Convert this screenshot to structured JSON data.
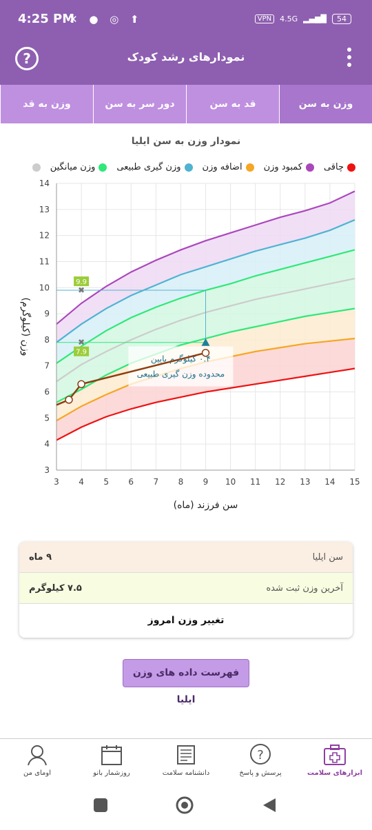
{
  "status": {
    "time": "4:25 PM",
    "network": "4.5G",
    "vpn": "VPN",
    "battery": "54"
  },
  "appbar": {
    "title": "نمودارهای رشد کودک",
    "help_symbol": "?"
  },
  "tabs": [
    {
      "label": "وزن به سن",
      "active": true
    },
    {
      "label": "قد به سن",
      "active": false
    },
    {
      "label": "دور سر به سن",
      "active": false
    },
    {
      "label": "وزن به قد",
      "active": false
    }
  ],
  "legend": [
    {
      "label": "چاقی",
      "color": "#ab47bc"
    },
    {
      "label": "کمبود وزن",
      "color": "#f5a623"
    },
    {
      "label": "اضافه وزن",
      "color": "#4fb3d1"
    },
    {
      "label": "وزن گیری طبیعی",
      "color": "#2ee87a"
    },
    {
      "label": "وزن میانگین",
      "color": "#cccccc"
    },
    {
      "label": "",
      "color": "#ee1111"
    }
  ],
  "chart_data": {
    "type": "line",
    "title": "نمودار وزن به سن ایلیا",
    "xlabel": "سن فرزند (ماه)",
    "ylabel": "وزن (کیلوگرم)",
    "xlim": [
      3,
      15
    ],
    "ylim": [
      3,
      14
    ],
    "xticks": [
      3,
      4,
      5,
      6,
      7,
      8,
      9,
      10,
      11,
      12,
      13,
      14,
      15
    ],
    "yticks": [
      3,
      4,
      5,
      6,
      7,
      8,
      9,
      10,
      11,
      12,
      13,
      14
    ],
    "x": [
      3,
      4,
      5,
      6,
      7,
      8,
      9,
      10,
      11,
      12,
      13,
      14,
      15
    ],
    "series": [
      {
        "name": "چاقی",
        "color": "#ab47bc",
        "values": [
          8.6,
          9.4,
          10.05,
          10.6,
          11.05,
          11.45,
          11.8,
          12.1,
          12.4,
          12.7,
          12.95,
          13.25,
          13.7
        ]
      },
      {
        "name": "اضافه وزن",
        "color": "#4fb3d1",
        "values": [
          7.9,
          8.6,
          9.2,
          9.7,
          10.1,
          10.5,
          10.8,
          11.1,
          11.4,
          11.65,
          11.9,
          12.2,
          12.6
        ]
      },
      {
        "name": "وزن گیری طبیعی",
        "color": "#2ee87a",
        "values": [
          7.1,
          7.75,
          8.35,
          8.85,
          9.25,
          9.6,
          9.9,
          10.15,
          10.45,
          10.7,
          10.95,
          11.2,
          11.45
        ]
      },
      {
        "name": "وزن میانگین",
        "color": "#cccccc",
        "values": [
          6.4,
          7.05,
          7.55,
          8.0,
          8.4,
          8.75,
          9.05,
          9.3,
          9.55,
          9.75,
          9.95,
          10.15,
          10.35
        ]
      },
      {
        "name": "",
        "color": "#2ee87a",
        "values": [
          5.6,
          6.1,
          6.65,
          7.1,
          7.45,
          7.8,
          8.05,
          8.3,
          8.5,
          8.7,
          8.9,
          9.05,
          9.2
        ]
      },
      {
        "name": "کمبود وزن",
        "color": "#f5a623",
        "values": [
          4.9,
          5.45,
          5.9,
          6.3,
          6.6,
          6.9,
          7.15,
          7.35,
          7.55,
          7.7,
          7.85,
          7.95,
          8.05
        ]
      },
      {
        "name": "",
        "color": "#ee1111",
        "values": [
          4.15,
          4.65,
          5.05,
          5.35,
          5.6,
          5.8,
          6.0,
          6.15,
          6.3,
          6.45,
          6.6,
          6.75,
          6.9
        ]
      }
    ],
    "child_points": [
      {
        "x": 3.5,
        "y": 5.7
      },
      {
        "x": 4.0,
        "y": 6.3
      },
      {
        "x": 9.0,
        "y": 7.5
      }
    ],
    "markers": [
      {
        "x": 4,
        "y": 9.9,
        "label": "9.9"
      },
      {
        "x": 4,
        "y": 7.9,
        "label": "7.9"
      }
    ],
    "target_point": {
      "x": 9,
      "y": 7.9
    },
    "annotation": {
      "line1": "۰.۴ کیلوگرم پایین",
      "line2": "محدوده وزن گیری طبیعی",
      "x": 8.0,
      "y": 6.9
    }
  },
  "card": {
    "age_label": "سن ایلیا",
    "age_value": "۹ ماه",
    "weight_label": "آخرین وزن ثبت شده",
    "weight_value": "۷.۵ کیلوگرم",
    "change_label": "تغییر وزن امروز"
  },
  "list_button": "فهرست داده های وزن ایلیا",
  "bottom_nav": [
    {
      "label": "ابزارهای سلامت",
      "icon": "medical-kit-icon",
      "active": true
    },
    {
      "label": "پرسش و پاسخ",
      "icon": "question-bubble-icon",
      "active": false
    },
    {
      "label": "دانشنامه سلامت",
      "icon": "encyclopedia-icon",
      "active": false
    },
    {
      "label": "روزشمار بانو",
      "icon": "calendar-icon",
      "active": false
    },
    {
      "label": "اومای من",
      "icon": "profile-icon",
      "active": false
    }
  ]
}
